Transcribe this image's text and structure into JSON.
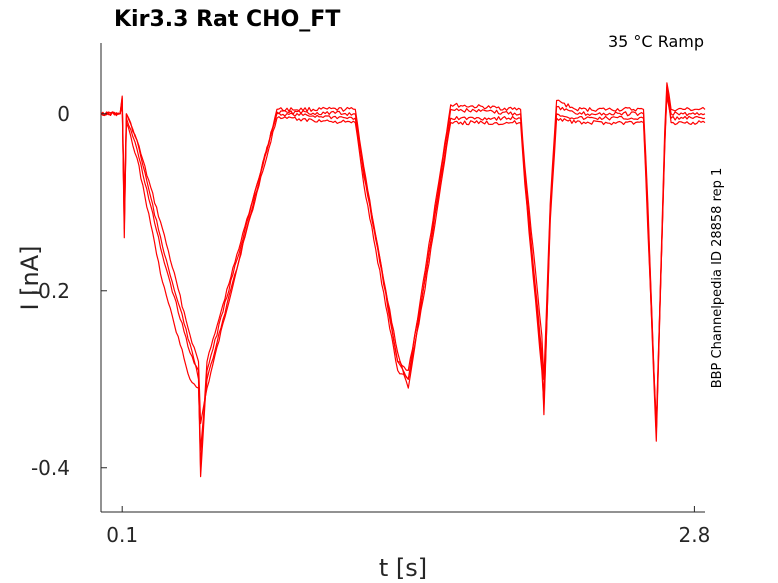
{
  "chart_data": {
    "type": "line",
    "title": "Kir3.3  Rat  CHO_FT",
    "annotation": "35 °C  Ramp",
    "side_label": "BBP Channelpedia ID 28858 rep 1",
    "xlabel": "t [s]",
    "ylabel": "I [nA]",
    "x_ticks": [
      {
        "value": 0.1,
        "label": "0.1"
      },
      {
        "value": 2.8,
        "label": "2.8"
      }
    ],
    "y_ticks": [
      {
        "value": 0,
        "label": "0"
      },
      {
        "value": -0.2,
        "label": "-0.2"
      },
      {
        "value": -0.4,
        "label": "-0.4"
      }
    ],
    "xlim": [
      0.0,
      2.85
    ],
    "ylim": [
      -0.45,
      0.08
    ],
    "color": "#ff0000",
    "series": [
      {
        "values": [
          [
            0.0,
            0
          ],
          [
            0.09,
            0
          ],
          [
            0.1,
            0.02
          ],
          [
            0.11,
            -0.14
          ],
          [
            0.12,
            0.0
          ],
          [
            0.17,
            -0.03
          ],
          [
            0.29,
            -0.13
          ],
          [
            0.42,
            -0.25
          ],
          [
            0.46,
            -0.28
          ],
          [
            0.47,
            -0.35
          ],
          [
            0.5,
            -0.31
          ],
          [
            0.83,
            0.005
          ],
          [
            1.2,
            0.005
          ],
          [
            1.24,
            -0.06
          ],
          [
            1.4,
            -0.28
          ],
          [
            1.45,
            -0.3
          ],
          [
            1.52,
            -0.19
          ],
          [
            1.65,
            0.01
          ],
          [
            1.98,
            0.005
          ],
          [
            2.0,
            -0.06
          ],
          [
            2.08,
            -0.25
          ],
          [
            2.09,
            -0.3
          ],
          [
            2.12,
            -0.1
          ],
          [
            2.15,
            0.015
          ],
          [
            2.24,
            0.005
          ],
          [
            2.56,
            0.005
          ],
          [
            2.58,
            -0.1
          ],
          [
            2.62,
            -0.36
          ],
          [
            2.66,
            -0.02
          ],
          [
            2.67,
            0.035
          ],
          [
            2.69,
            0.005
          ],
          [
            2.85,
            0.005
          ]
        ]
      },
      {
        "values": [
          [
            0.0,
            0
          ],
          [
            0.09,
            0
          ],
          [
            0.1,
            0.01
          ],
          [
            0.11,
            -0.12
          ],
          [
            0.12,
            -0.005
          ],
          [
            0.17,
            -0.04
          ],
          [
            0.29,
            -0.16
          ],
          [
            0.42,
            -0.27
          ],
          [
            0.46,
            -0.29
          ],
          [
            0.47,
            -0.4
          ],
          [
            0.5,
            -0.28
          ],
          [
            0.83,
            0.0
          ],
          [
            1.2,
            -0.005
          ],
          [
            1.24,
            -0.07
          ],
          [
            1.4,
            -0.27
          ],
          [
            1.45,
            -0.31
          ],
          [
            1.52,
            -0.2
          ],
          [
            1.65,
            -0.005
          ],
          [
            1.98,
            -0.005
          ],
          [
            2.0,
            -0.07
          ],
          [
            2.08,
            -0.27
          ],
          [
            2.09,
            -0.34
          ],
          [
            2.12,
            -0.11
          ],
          [
            2.15,
            0.0
          ],
          [
            2.24,
            -0.005
          ],
          [
            2.56,
            -0.005
          ],
          [
            2.58,
            -0.12
          ],
          [
            2.62,
            -0.37
          ],
          [
            2.66,
            -0.03
          ],
          [
            2.67,
            0.02
          ],
          [
            2.69,
            -0.005
          ],
          [
            2.85,
            -0.005
          ]
        ]
      },
      {
        "values": [
          [
            0.0,
            0
          ],
          [
            0.09,
            0
          ],
          [
            0.1,
            0.015
          ],
          [
            0.11,
            -0.13
          ],
          [
            0.12,
            -0.01
          ],
          [
            0.17,
            -0.05
          ],
          [
            0.29,
            -0.19
          ],
          [
            0.42,
            -0.3
          ],
          [
            0.46,
            -0.31
          ],
          [
            0.47,
            -0.38
          ],
          [
            0.5,
            -0.3
          ],
          [
            0.83,
            -0.005
          ],
          [
            1.2,
            -0.01
          ],
          [
            1.24,
            -0.08
          ],
          [
            1.4,
            -0.29
          ],
          [
            1.45,
            -0.3
          ],
          [
            1.52,
            -0.21
          ],
          [
            1.65,
            -0.01
          ],
          [
            1.98,
            -0.01
          ],
          [
            2.0,
            -0.08
          ],
          [
            2.08,
            -0.29
          ],
          [
            2.09,
            -0.33
          ],
          [
            2.12,
            -0.12
          ],
          [
            2.15,
            -0.005
          ],
          [
            2.24,
            -0.01
          ],
          [
            2.56,
            -0.01
          ],
          [
            2.58,
            -0.13
          ],
          [
            2.62,
            -0.35
          ],
          [
            2.66,
            -0.04
          ],
          [
            2.67,
            0.025
          ],
          [
            2.69,
            -0.01
          ],
          [
            2.85,
            -0.01
          ]
        ]
      },
      {
        "values": [
          [
            0.0,
            0
          ],
          [
            0.09,
            0
          ],
          [
            0.1,
            0.018
          ],
          [
            0.11,
            -0.1
          ],
          [
            0.12,
            0.0
          ],
          [
            0.17,
            -0.03
          ],
          [
            0.29,
            -0.15
          ],
          [
            0.42,
            -0.26
          ],
          [
            0.46,
            -0.3
          ],
          [
            0.47,
            -0.41
          ],
          [
            0.5,
            -0.29
          ],
          [
            0.83,
            0.002
          ],
          [
            1.2,
            0.0
          ],
          [
            1.24,
            -0.065
          ],
          [
            1.4,
            -0.28
          ],
          [
            1.45,
            -0.29
          ],
          [
            1.52,
            -0.2
          ],
          [
            1.65,
            0.005
          ],
          [
            1.98,
            0.0
          ],
          [
            2.0,
            -0.075
          ],
          [
            2.08,
            -0.28
          ],
          [
            2.09,
            -0.32
          ],
          [
            2.12,
            -0.105
          ],
          [
            2.15,
            0.008
          ],
          [
            2.24,
            0.0
          ],
          [
            2.56,
            0.0
          ],
          [
            2.58,
            -0.11
          ],
          [
            2.62,
            -0.36
          ],
          [
            2.66,
            -0.035
          ],
          [
            2.67,
            0.03
          ],
          [
            2.69,
            0.0
          ],
          [
            2.85,
            0.0
          ]
        ]
      }
    ]
  }
}
